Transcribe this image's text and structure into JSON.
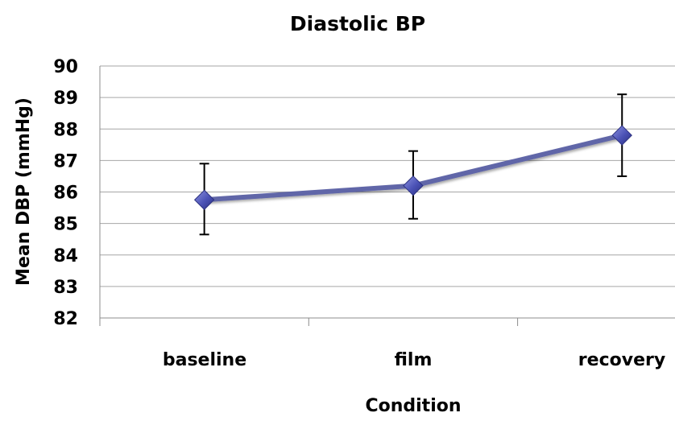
{
  "chart_data": {
    "type": "line",
    "title": "Diastolic BP",
    "xlabel": "Condition",
    "ylabel": "Mean DBP (mmHg)",
    "categories": [
      "baseline",
      "film",
      "recovery"
    ],
    "series": [
      {
        "values": [
          85.75,
          86.2,
          87.8
        ],
        "error_low": [
          84.65,
          85.15,
          86.5
        ],
        "error_high": [
          86.9,
          87.3,
          89.1
        ]
      }
    ],
    "ylim": [
      82,
      90
    ],
    "yticks": [
      82,
      83,
      84,
      85,
      86,
      87,
      88,
      89,
      90
    ],
    "grid": "horizontal",
    "legend": "none",
    "line_color": "#6166a8",
    "marker": "diamond",
    "marker_color": "#4a51b5",
    "error_bar_color": "#000000"
  }
}
